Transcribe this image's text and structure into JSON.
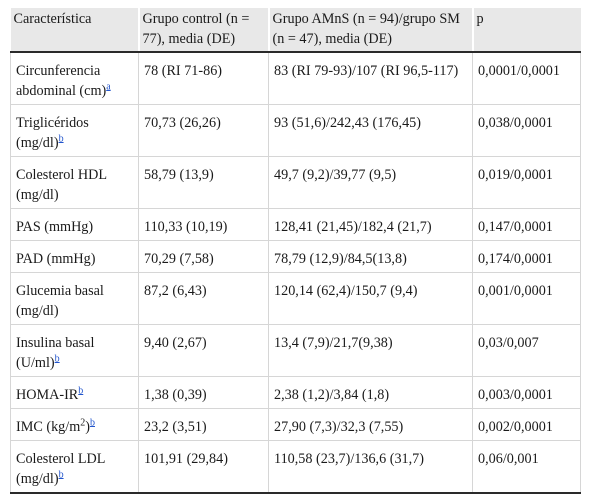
{
  "header": {
    "col1": "Característica",
    "col2": "Grupo control (n = 77), media (DE)",
    "col3": "Grupo AMnS (n = 94)/grupo SM (n = 47), media (DE)",
    "col4": "p"
  },
  "rows": [
    {
      "label": "Circunferencia abdominal (cm)",
      "note": "a",
      "control": "78 (RI 71-86)",
      "groups": "83 (RI 79-93)/107 (RI 96,5-117)",
      "p": "0,0001/0,0001"
    },
    {
      "label": "Triglicéridos (mg/dl)",
      "note": "b",
      "control": "70,73 (26,26)",
      "groups": "93 (51,6)/242,43 (176,45)",
      "p": "0,038/0,0001"
    },
    {
      "label": "Colesterol HDL (mg/dl)",
      "note": "",
      "control": "58,79 (13,9)",
      "groups": "49,7 (9,2)/39,77 (9,5)",
      "p": "0,019/0,0001"
    },
    {
      "label": "PAS (mmHg)",
      "note": "",
      "control": "110,33 (10,19)",
      "groups": "128,41 (21,45)/182,4 (21,7)",
      "p": "0,147/0,0001"
    },
    {
      "label": "PAD (mmHg)",
      "note": "",
      "control": "70,29 (7,58)",
      "groups": "78,79 (12,9)/84,5(13,8)",
      "p": "0,174/0,0001"
    },
    {
      "label": "Glucemia basal (mg/dl)",
      "note": "",
      "control": "87,2 (6,43)",
      "groups": "120,14 (62,4)/150,7 (9,4)",
      "p": "0,001/0,0001"
    },
    {
      "label": "Insulina basal (U/ml)",
      "note": "b",
      "control": "9,40 (2,67)",
      "groups": "13,4 (7,9)/21,7(9,38)",
      "p": "0,03/0,007"
    },
    {
      "label": "HOMA-IR",
      "note": "b",
      "control": "1,38 (0,39)",
      "groups": "2,38 (1,2)/3,84 (1,8)",
      "p": "0,003/0,0001"
    },
    {
      "label": "IMC (kg/m",
      "label_sup": "2",
      "label_after": ")",
      "note": "b",
      "control": "23,2 (3,51)",
      "groups": "27,90 (7,3)/32,3 (7,55)",
      "p": "0,002/0,0001"
    },
    {
      "label": "Colesterol LDL (mg/dl)",
      "note": "b",
      "control": "101,91 (29,84)",
      "groups": "110,58 (23,7)/136,6 (31,7)",
      "p": "0,06/0,001"
    }
  ]
}
